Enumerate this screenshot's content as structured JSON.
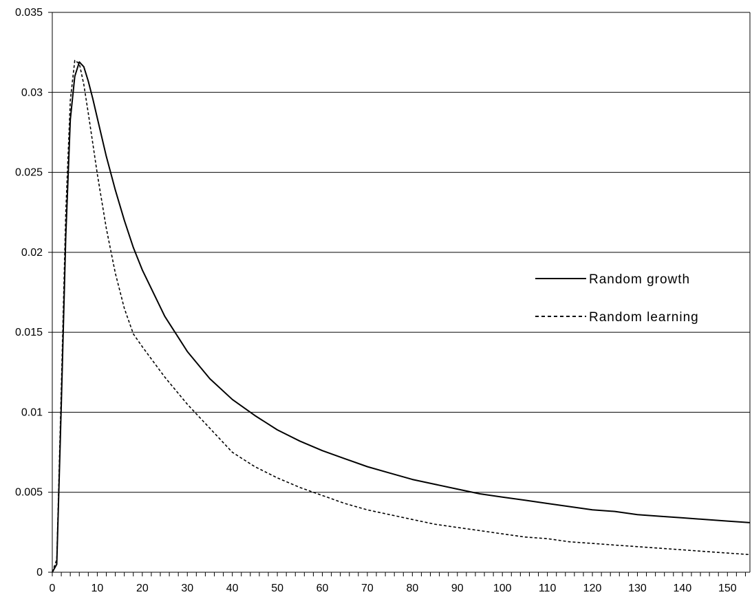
{
  "chart_data": {
    "type": "line",
    "title": "",
    "xlabel": "",
    "ylabel": "",
    "xlim": [
      0,
      155
    ],
    "ylim": [
      0,
      0.035
    ],
    "grid": "horizontal",
    "legend_position": "right",
    "x_ticks": [
      0,
      10,
      20,
      30,
      40,
      50,
      60,
      70,
      80,
      90,
      100,
      110,
      120,
      130,
      140,
      150
    ],
    "x_tick_labels": [
      "0",
      "10",
      "20",
      "30",
      "40",
      "50",
      "60",
      "70",
      "80",
      "90",
      "100",
      "110",
      "120",
      "130",
      "140",
      "150"
    ],
    "y_ticks": [
      0,
      0.005,
      0.01,
      0.015,
      0.02,
      0.025,
      0.03,
      0.035
    ],
    "y_tick_labels": [
      "0",
      "0.005",
      "0.01",
      "0.015",
      "0.02",
      "0.025",
      "0.03",
      "0.035"
    ],
    "series": [
      {
        "name": "Random growth",
        "style": "solid",
        "color": "#000000",
        "points": [
          [
            0,
            0
          ],
          [
            1,
            0.0005
          ],
          [
            2,
            0.0105
          ],
          [
            3,
            0.021
          ],
          [
            4,
            0.0283
          ],
          [
            5,
            0.031
          ],
          [
            6,
            0.0319
          ],
          [
            7,
            0.0316
          ],
          [
            8,
            0.0307
          ],
          [
            9,
            0.0296
          ],
          [
            10,
            0.0284
          ],
          [
            12,
            0.026
          ],
          [
            14,
            0.0239
          ],
          [
            16,
            0.022
          ],
          [
            18,
            0.0203
          ],
          [
            20,
            0.0189
          ],
          [
            25,
            0.016
          ],
          [
            30,
            0.0138
          ],
          [
            35,
            0.0121
          ],
          [
            40,
            0.0108
          ],
          [
            45,
            0.0098
          ],
          [
            50,
            0.0089
          ],
          [
            55,
            0.0082
          ],
          [
            60,
            0.0076
          ],
          [
            65,
            0.0071
          ],
          [
            70,
            0.0066
          ],
          [
            75,
            0.0062
          ],
          [
            80,
            0.0058
          ],
          [
            85,
            0.0055
          ],
          [
            90,
            0.0052
          ],
          [
            95,
            0.0049
          ],
          [
            100,
            0.0047
          ],
          [
            105,
            0.0045
          ],
          [
            110,
            0.0043
          ],
          [
            115,
            0.0041
          ],
          [
            120,
            0.0039
          ],
          [
            125,
            0.0038
          ],
          [
            130,
            0.0036
          ],
          [
            135,
            0.0035
          ],
          [
            140,
            0.0034
          ],
          [
            145,
            0.0033
          ],
          [
            150,
            0.0032
          ],
          [
            155,
            0.0031
          ]
        ]
      },
      {
        "name": "Random learning",
        "style": "dashed",
        "color": "#000000",
        "points": [
          [
            0,
            0
          ],
          [
            1,
            0.0008
          ],
          [
            2,
            0.0115
          ],
          [
            3,
            0.0225
          ],
          [
            4,
            0.0295
          ],
          [
            5,
            0.032
          ],
          [
            6,
            0.0318
          ],
          [
            7,
            0.0305
          ],
          [
            8,
            0.0287
          ],
          [
            9,
            0.0268
          ],
          [
            10,
            0.0249
          ],
          [
            12,
            0.0215
          ],
          [
            14,
            0.0187
          ],
          [
            16,
            0.0165
          ],
          [
            18,
            0.0149
          ],
          [
            20,
            0.0141
          ],
          [
            25,
            0.0122
          ],
          [
            30,
            0.0105
          ],
          [
            35,
            0.009
          ],
          [
            40,
            0.0075
          ],
          [
            45,
            0.0066
          ],
          [
            50,
            0.0059
          ],
          [
            55,
            0.0053
          ],
          [
            60,
            0.0048
          ],
          [
            65,
            0.0043
          ],
          [
            70,
            0.0039
          ],
          [
            75,
            0.0036
          ],
          [
            80,
            0.0033
          ],
          [
            85,
            0.003
          ],
          [
            90,
            0.0028
          ],
          [
            95,
            0.0026
          ],
          [
            100,
            0.0024
          ],
          [
            105,
            0.0022
          ],
          [
            110,
            0.0021
          ],
          [
            115,
            0.0019
          ],
          [
            120,
            0.0018
          ],
          [
            125,
            0.0017
          ],
          [
            130,
            0.0016
          ],
          [
            135,
            0.0015
          ],
          [
            140,
            0.0014
          ],
          [
            145,
            0.0013
          ],
          [
            150,
            0.0012
          ],
          [
            155,
            0.0011
          ]
        ]
      }
    ]
  }
}
